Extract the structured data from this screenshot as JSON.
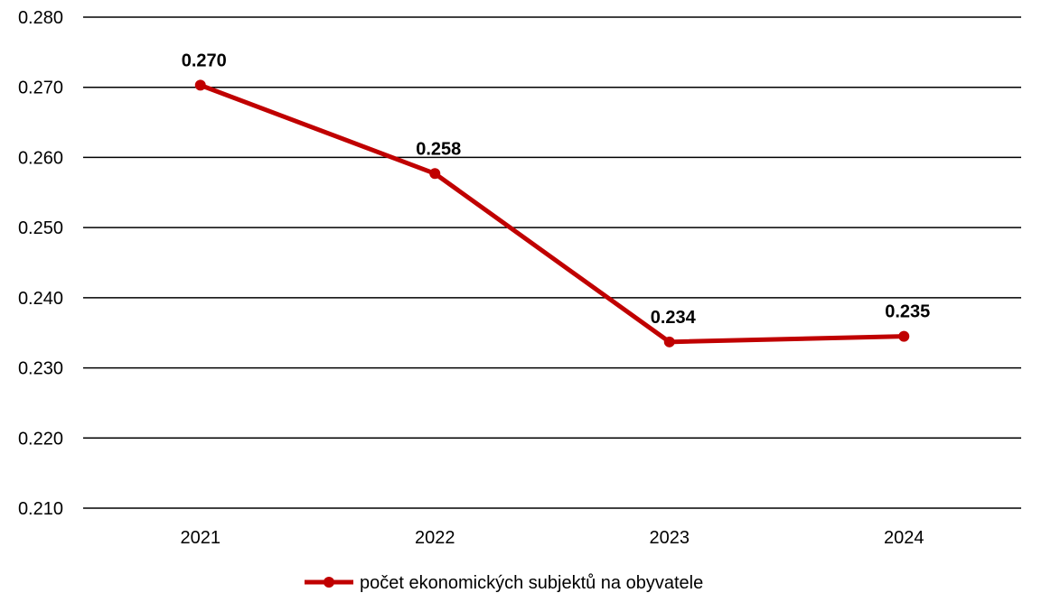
{
  "chart_data": {
    "type": "line",
    "categories": [
      "2021",
      "2022",
      "2023",
      "2024"
    ],
    "series": [
      {
        "name": "počet ekonomických subjektů na obyvatele",
        "values": [
          0.2703,
          0.2577,
          0.2337,
          0.2345
        ],
        "labels": [
          "0.270",
          "0.258",
          "0.234",
          "0.235"
        ],
        "color": "#C00000"
      }
    ],
    "ylim": [
      0.21,
      0.28
    ],
    "yticks": [
      "0.210",
      "0.220",
      "0.230",
      "0.240",
      "0.250",
      "0.260",
      "0.270",
      "0.280"
    ],
    "grid": true,
    "legend_position": "bottom"
  }
}
